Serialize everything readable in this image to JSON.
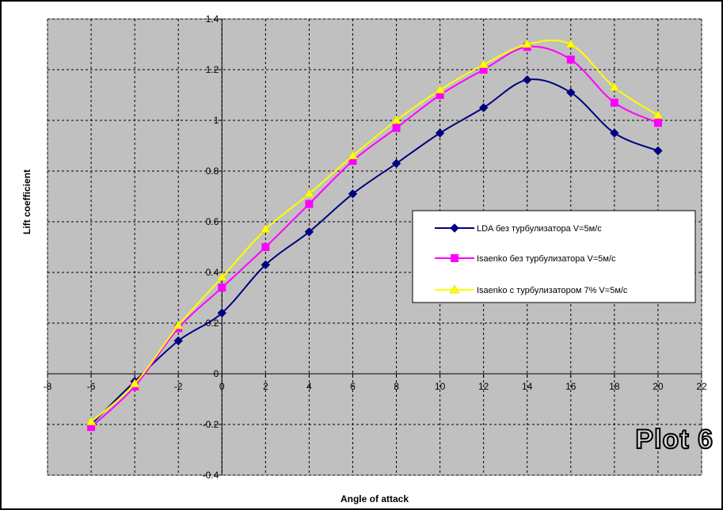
{
  "plot_label": "Plot 6",
  "chart_data": {
    "type": "line",
    "xlabel": "Angle of attack",
    "ylabel": "Lift coefficient",
    "xlim": [
      -8,
      22
    ],
    "ylim": [
      -0.4,
      1.4
    ],
    "x_ticks": [
      "-8",
      "-6",
      "-4",
      "-2",
      "0",
      "2",
      "4",
      "6",
      "8",
      "10",
      "12",
      "14",
      "16",
      "18",
      "20",
      "22"
    ],
    "y_ticks": [
      "-0.4",
      "-0.2",
      "0",
      "0.2",
      "0.4",
      "0.6",
      "0.8",
      "1",
      "1.2",
      "1.4"
    ],
    "grid": true,
    "legend_position": "right",
    "plot_background": "#c0c0c0",
    "series": [
      {
        "name": "LDA без турбулизатора V=5м/с",
        "color": "#000080",
        "marker": "diamond",
        "x": [
          -6,
          -4,
          -2,
          0,
          2,
          4,
          6,
          8,
          10,
          12,
          14,
          16,
          18,
          20
        ],
        "y": [
          -0.2,
          -0.03,
          0.13,
          0.24,
          0.43,
          0.56,
          0.71,
          0.83,
          0.95,
          1.05,
          1.16,
          1.11,
          0.95,
          0.88
        ]
      },
      {
        "name": "Isaenko без турбулизатора V=5м/с",
        "color": "#ff00ff",
        "marker": "square",
        "x": [
          -6,
          -4,
          -2,
          0,
          2,
          4,
          6,
          8,
          10,
          12,
          14,
          16,
          18,
          20
        ],
        "y": [
          -0.21,
          -0.05,
          0.18,
          0.34,
          0.5,
          0.67,
          0.84,
          0.97,
          1.1,
          1.2,
          1.29,
          1.24,
          1.07,
          0.99
        ]
      },
      {
        "name": "Isaenko с турбулизатором 7% V=5м/с",
        "color": "#ffff00",
        "marker": "triangle",
        "x": [
          -6,
          -4,
          -2,
          0,
          2,
          4,
          6,
          8,
          10,
          12,
          14,
          16,
          18,
          20
        ],
        "y": [
          -0.19,
          -0.04,
          0.19,
          0.38,
          0.57,
          0.71,
          0.86,
          1.0,
          1.12,
          1.22,
          1.3,
          1.3,
          1.13,
          1.02
        ]
      }
    ]
  }
}
